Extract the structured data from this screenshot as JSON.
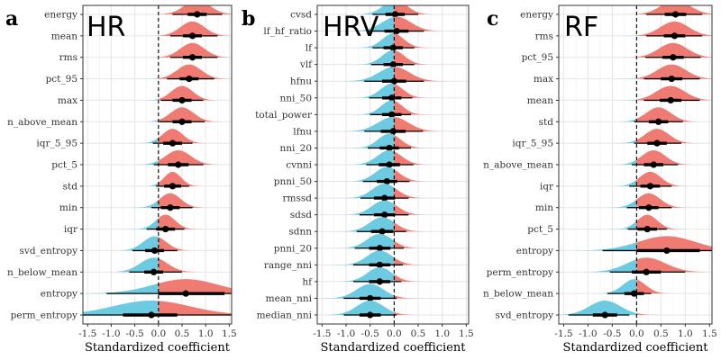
{
  "chart_data": [
    {
      "type": "forest-density",
      "panel_label": "a",
      "title": "HR",
      "xlabel": "Standardized coefficient",
      "xlim": [
        -1.6,
        1.55
      ],
      "xticks": [
        -1.5,
        -1.0,
        -0.5,
        0.0,
        0.5,
        1.0,
        1.5
      ],
      "xtick_labels": [
        "-1.5",
        "-1.0",
        "-0.5",
        "0.0",
        "0.5",
        "1.0",
        "1.5"
      ],
      "rows": [
        {
          "label": "energy",
          "est": 0.82,
          "lo66": 0.62,
          "hi66": 1.02,
          "lo95": 0.3,
          "hi95": 1.35
        },
        {
          "label": "mean",
          "est": 0.72,
          "lo66": 0.52,
          "hi66": 0.92,
          "lo95": 0.25,
          "hi95": 1.25
        },
        {
          "label": "rms",
          "est": 0.72,
          "lo66": 0.52,
          "hi66": 0.92,
          "lo95": 0.25,
          "hi95": 1.25
        },
        {
          "label": "pct_95",
          "est": 0.65,
          "lo66": 0.45,
          "hi66": 0.85,
          "lo95": 0.18,
          "hi95": 1.18
        },
        {
          "label": "max",
          "est": 0.5,
          "lo66": 0.3,
          "hi66": 0.7,
          "lo95": 0.05,
          "hi95": 0.95
        },
        {
          "label": "n_above_mean",
          "est": 0.5,
          "lo66": 0.3,
          "hi66": 0.7,
          "lo95": 0.02,
          "hi95": 0.98
        },
        {
          "label": "iqr_5_95",
          "est": 0.3,
          "lo66": 0.1,
          "hi66": 0.5,
          "lo95": -0.12,
          "hi95": 0.72
        },
        {
          "label": "pct_5",
          "est": 0.42,
          "lo66": 0.2,
          "hi66": 0.64,
          "lo95": -0.1,
          "hi95": 0.95
        },
        {
          "label": "std",
          "est": 0.3,
          "lo66": 0.12,
          "hi66": 0.48,
          "lo95": -0.05,
          "hi95": 0.65
        },
        {
          "label": "min",
          "est": 0.25,
          "lo66": 0.05,
          "hi66": 0.45,
          "lo95": -0.15,
          "hi95": 0.72
        },
        {
          "label": "iqr",
          "est": 0.15,
          "lo66": -0.05,
          "hi66": 0.35,
          "lo95": -0.25,
          "hi95": 0.55
        },
        {
          "label": "svd_entropy",
          "est": -0.08,
          "lo66": -0.28,
          "hi66": 0.12,
          "lo95": -0.55,
          "hi95": 0.4
        },
        {
          "label": "n_below_mean",
          "est": -0.1,
          "lo66": -0.3,
          "hi66": 0.1,
          "lo95": -0.62,
          "hi95": 0.5
        },
        {
          "label": "entropy",
          "est": 0.58,
          "lo66": 0.0,
          "hi66": 1.4,
          "lo95": -1.1,
          "hi95": 1.6
        },
        {
          "label": "perm_entropy",
          "est": -0.15,
          "lo66": -0.75,
          "hi66": 0.4,
          "lo95": -1.6,
          "hi95": 1.6
        }
      ]
    },
    {
      "type": "forest-density",
      "panel_label": "b",
      "title": "HRV",
      "xlabel": "Standardized coefficient",
      "xlim": [
        -1.6,
        1.55
      ],
      "xticks": [
        -1.5,
        -1.0,
        -0.5,
        0.0,
        0.5,
        1.0,
        1.5
      ],
      "xtick_labels": [
        "-1.5",
        "-1.0",
        "-0.5",
        "0.0",
        "0.5",
        "1.0",
        "1.5"
      ],
      "rows": [
        {
          "label": "cvsd",
          "est": 0.02,
          "lo66": -0.18,
          "hi66": 0.22,
          "lo95": -0.45,
          "hi95": 0.5
        },
        {
          "label": "lf_hf_ratio",
          "est": 0.05,
          "lo66": -0.2,
          "hi66": 0.3,
          "lo95": -0.55,
          "hi95": 0.62
        },
        {
          "label": "lf",
          "est": -0.02,
          "lo66": -0.22,
          "hi66": 0.18,
          "lo95": -0.45,
          "hi95": 0.42
        },
        {
          "label": "vlf",
          "est": -0.02,
          "lo66": -0.22,
          "hi66": 0.18,
          "lo95": -0.48,
          "hi95": 0.42
        },
        {
          "label": "hfnu",
          "est": 0.0,
          "lo66": -0.25,
          "hi66": 0.25,
          "lo95": -0.62,
          "hi95": 0.62
        },
        {
          "label": "nni_50",
          "est": -0.05,
          "lo66": -0.25,
          "hi66": 0.15,
          "lo95": -0.52,
          "hi95": 0.38
        },
        {
          "label": "total_power",
          "est": -0.05,
          "lo66": -0.25,
          "hi66": 0.15,
          "lo95": -0.5,
          "hi95": 0.35
        },
        {
          "label": "lfnu",
          "est": -0.02,
          "lo66": -0.28,
          "hi66": 0.24,
          "lo95": -0.62,
          "hi95": 0.6
        },
        {
          "label": "nni_20",
          "est": -0.1,
          "lo66": -0.3,
          "hi66": 0.1,
          "lo95": -0.55,
          "hi95": 0.35
        },
        {
          "label": "cvnni",
          "est": -0.1,
          "lo66": -0.32,
          "hi66": 0.12,
          "lo95": -0.58,
          "hi95": 0.4
        },
        {
          "label": "pnni_50",
          "est": -0.15,
          "lo66": -0.36,
          "hi66": 0.06,
          "lo95": -0.65,
          "hi95": 0.32
        },
        {
          "label": "rmssd",
          "est": -0.2,
          "lo66": -0.42,
          "hi66": 0.02,
          "lo95": -0.7,
          "hi95": 0.3
        },
        {
          "label": "sdsd",
          "est": -0.2,
          "lo66": -0.42,
          "hi66": 0.02,
          "lo95": -0.72,
          "hi95": 0.3
        },
        {
          "label": "sdnn",
          "est": -0.25,
          "lo66": -0.48,
          "hi66": -0.02,
          "lo95": -0.78,
          "hi95": 0.25
        },
        {
          "label": "pnni_20",
          "est": -0.3,
          "lo66": -0.52,
          "hi66": -0.08,
          "lo95": -0.82,
          "hi95": 0.2
        },
        {
          "label": "range_nni",
          "est": -0.3,
          "lo66": -0.52,
          "hi66": -0.08,
          "lo95": -0.85,
          "hi95": 0.18
        },
        {
          "label": "hf",
          "est": -0.3,
          "lo66": -0.52,
          "hi66": -0.08,
          "lo95": -0.85,
          "hi95": 0.15
        },
        {
          "label": "mean_nni",
          "est": -0.5,
          "lo66": -0.72,
          "hi66": -0.28,
          "lo95": -1.05,
          "hi95": 0.05
        },
        {
          "label": "median_nni",
          "est": -0.5,
          "lo66": -0.72,
          "hi66": -0.28,
          "lo95": -1.05,
          "hi95": 0.05
        }
      ]
    },
    {
      "type": "forest-density",
      "panel_label": "c",
      "title": "RF",
      "xlabel": "Standardized coefficient",
      "xlim": [
        -1.6,
        1.55
      ],
      "xticks": [
        -1.5,
        -1.0,
        -0.5,
        0.0,
        0.5,
        1.0,
        1.5
      ],
      "xtick_labels": [
        "-1.5",
        "-1.0",
        "-0.5",
        "0.0",
        "0.5",
        "1.0",
        "1.5"
      ],
      "rows": [
        {
          "label": "energy",
          "est": 0.8,
          "lo66": 0.58,
          "hi66": 1.02,
          "lo95": 0.2,
          "hi95": 1.35
        },
        {
          "label": "rms",
          "est": 0.78,
          "lo66": 0.56,
          "hi66": 1.0,
          "lo95": 0.2,
          "hi95": 1.35
        },
        {
          "label": "pct_95",
          "est": 0.75,
          "lo66": 0.53,
          "hi66": 0.97,
          "lo95": 0.18,
          "hi95": 1.32
        },
        {
          "label": "max",
          "est": 0.72,
          "lo66": 0.5,
          "hi66": 0.94,
          "lo95": 0.15,
          "hi95": 1.3
        },
        {
          "label": "mean",
          "est": 0.7,
          "lo66": 0.48,
          "hi66": 0.92,
          "lo95": 0.15,
          "hi95": 1.3
        },
        {
          "label": "std",
          "est": 0.45,
          "lo66": 0.25,
          "hi66": 0.65,
          "lo95": -0.05,
          "hi95": 0.95
        },
        {
          "label": "iqr_5_95",
          "est": 0.42,
          "lo66": 0.22,
          "hi66": 0.62,
          "lo95": -0.05,
          "hi95": 0.92
        },
        {
          "label": "n_above_mean",
          "est": 0.35,
          "lo66": 0.15,
          "hi66": 0.55,
          "lo95": -0.1,
          "hi95": 0.85
        },
        {
          "label": "iqr",
          "est": 0.28,
          "lo66": 0.08,
          "hi66": 0.48,
          "lo95": -0.15,
          "hi95": 0.72
        },
        {
          "label": "min",
          "est": 0.25,
          "lo66": 0.05,
          "hi66": 0.45,
          "lo95": -0.2,
          "hi95": 0.72
        },
        {
          "label": "pct_5",
          "est": 0.22,
          "lo66": 0.02,
          "hi66": 0.42,
          "lo95": -0.18,
          "hi95": 0.62
        },
        {
          "label": "entropy",
          "est": 0.62,
          "lo66": 0.0,
          "hi66": 1.3,
          "lo95": -0.7,
          "hi95": 1.6
        },
        {
          "label": "perm_entropy",
          "est": 0.2,
          "lo66": -0.1,
          "hi66": 0.5,
          "lo95": -0.55,
          "hi95": 1.0
        },
        {
          "label": "n_below_mean",
          "est": -0.05,
          "lo66": -0.25,
          "hi66": 0.15,
          "lo95": -0.6,
          "hi95": 0.3
        },
        {
          "label": "svd_entropy",
          "est": -0.65,
          "lo66": -0.9,
          "hi66": -0.4,
          "lo95": -1.4,
          "hi95": -0.15
        }
      ]
    }
  ],
  "colors": {
    "positive": "#EF7B72",
    "negative": "#6CCBE0",
    "panel_bg": "#ffffff",
    "grid": "#E5E5E5",
    "border": "#333333",
    "point": "#000000"
  }
}
